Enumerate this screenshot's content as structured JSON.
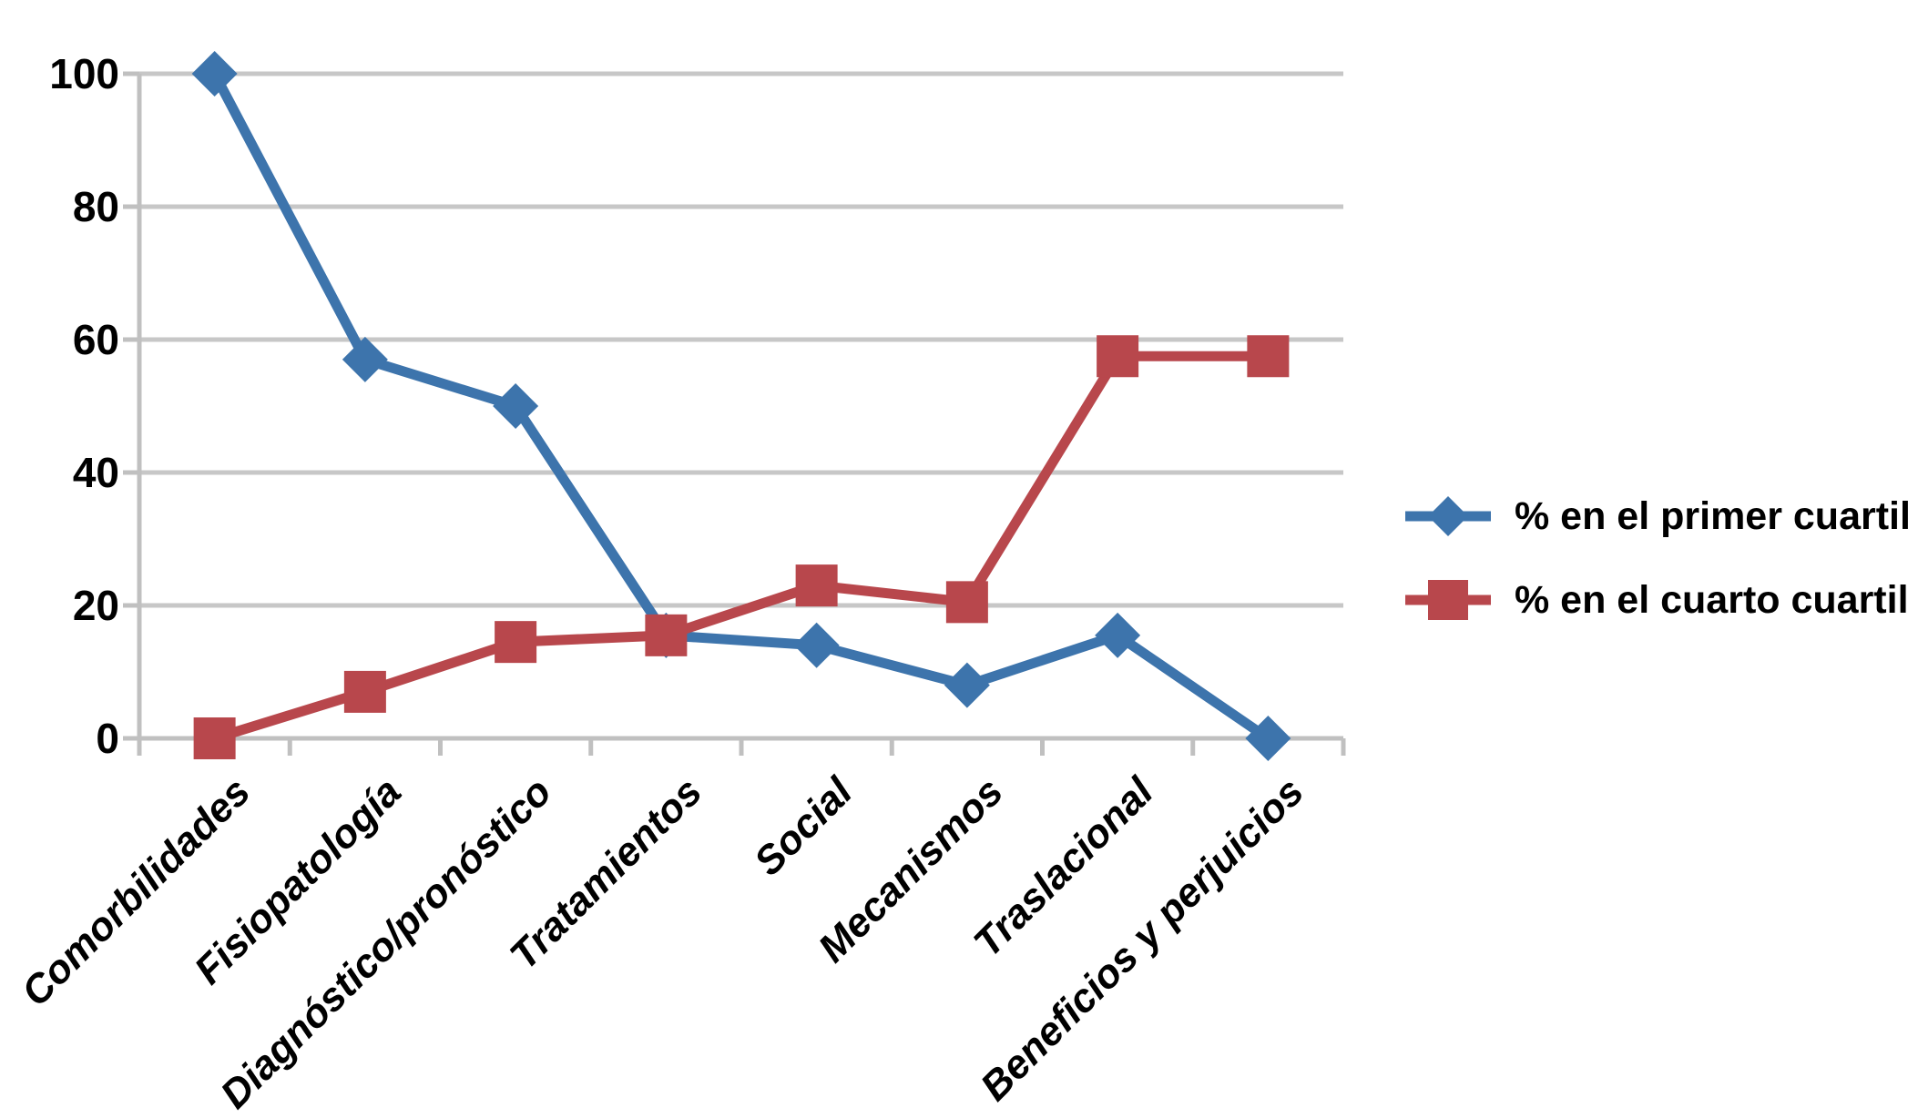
{
  "chart_data": {
    "type": "line",
    "title": "",
    "xlabel": "",
    "ylabel": "",
    "categories": [
      "Comorbilidades",
      "Fisiopatología",
      "Diagnóstico/pronóstico",
      "Tratamientos",
      "Social",
      "Mecanismos",
      "Traslacional",
      "Beneficios y perjuicios"
    ],
    "series": [
      {
        "name": "% en el primer cuartil",
        "marker": "diamond",
        "color": "#3D74AC",
        "values": [
          100,
          57,
          50,
          15.5,
          14,
          8,
          15.5,
          0
        ]
      },
      {
        "name": "% en el cuarto cuartil",
        "marker": "square",
        "color": "#B8474C",
        "values": [
          0,
          7,
          14.5,
          15.5,
          23,
          20.5,
          57.5,
          57.5
        ]
      }
    ],
    "ylim": [
      0,
      100
    ],
    "yticks": [
      0,
      20,
      40,
      60,
      80,
      100
    ],
    "grid": true,
    "gridline_color": "#C7C7C7",
    "axis_color": "#C0C0C0",
    "legend_position": "right"
  }
}
